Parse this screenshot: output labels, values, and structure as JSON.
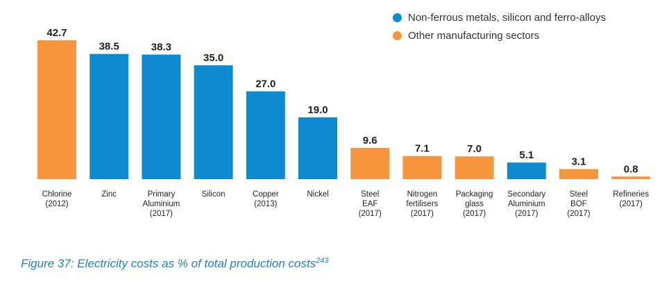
{
  "colors": {
    "non_ferrous": "#0e8bd0",
    "other": "#f7953e",
    "caption": "#1f7fc1"
  },
  "legend": [
    {
      "label": "Non-ferrous metals, silicon and ferro-alloys",
      "color": "#0e8bd0"
    },
    {
      "label": "Other manufacturing sectors",
      "color": "#f7953e"
    }
  ],
  "caption": {
    "text": "Figure 37: Electricity costs as % of total production costs",
    "ref": "243"
  },
  "chart_data": {
    "type": "bar",
    "categories": [
      [
        "Chlorine",
        "(2012)"
      ],
      [
        "Zinc"
      ],
      [
        "Primary",
        "Aluminium",
        "(2017)"
      ],
      [
        "Silicon"
      ],
      [
        "Copper",
        "(2013)"
      ],
      [
        "Nickel"
      ],
      [
        "Steel",
        "EAF",
        "(2017)"
      ],
      [
        "Nitrogen",
        "fertilisers",
        "(2017)"
      ],
      [
        "Packaging",
        "glass",
        "(2017)"
      ],
      [
        "Secondary",
        "Aluminium",
        "(2017)"
      ],
      [
        "Steel",
        "BOF",
        "(2017)"
      ],
      [
        "Refineries",
        "(2017)"
      ]
    ],
    "values": [
      42.7,
      38.5,
      38.3,
      35.0,
      27.0,
      19.0,
      9.6,
      7.1,
      7.0,
      5.1,
      3.1,
      0.8
    ],
    "value_labels": [
      "42.7",
      "38.5",
      "38.3",
      "35.0",
      "27.0",
      "19.0",
      "9.6",
      "7.1",
      "7.0",
      "5.1",
      "3.1",
      "0.8"
    ],
    "groups": [
      "other",
      "non_ferrous",
      "non_ferrous",
      "non_ferrous",
      "non_ferrous",
      "non_ferrous",
      "other",
      "other",
      "other",
      "non_ferrous",
      "other",
      "other"
    ],
    "ylim": [
      0,
      42.7
    ],
    "grid": false,
    "legend_position": "top-right"
  }
}
